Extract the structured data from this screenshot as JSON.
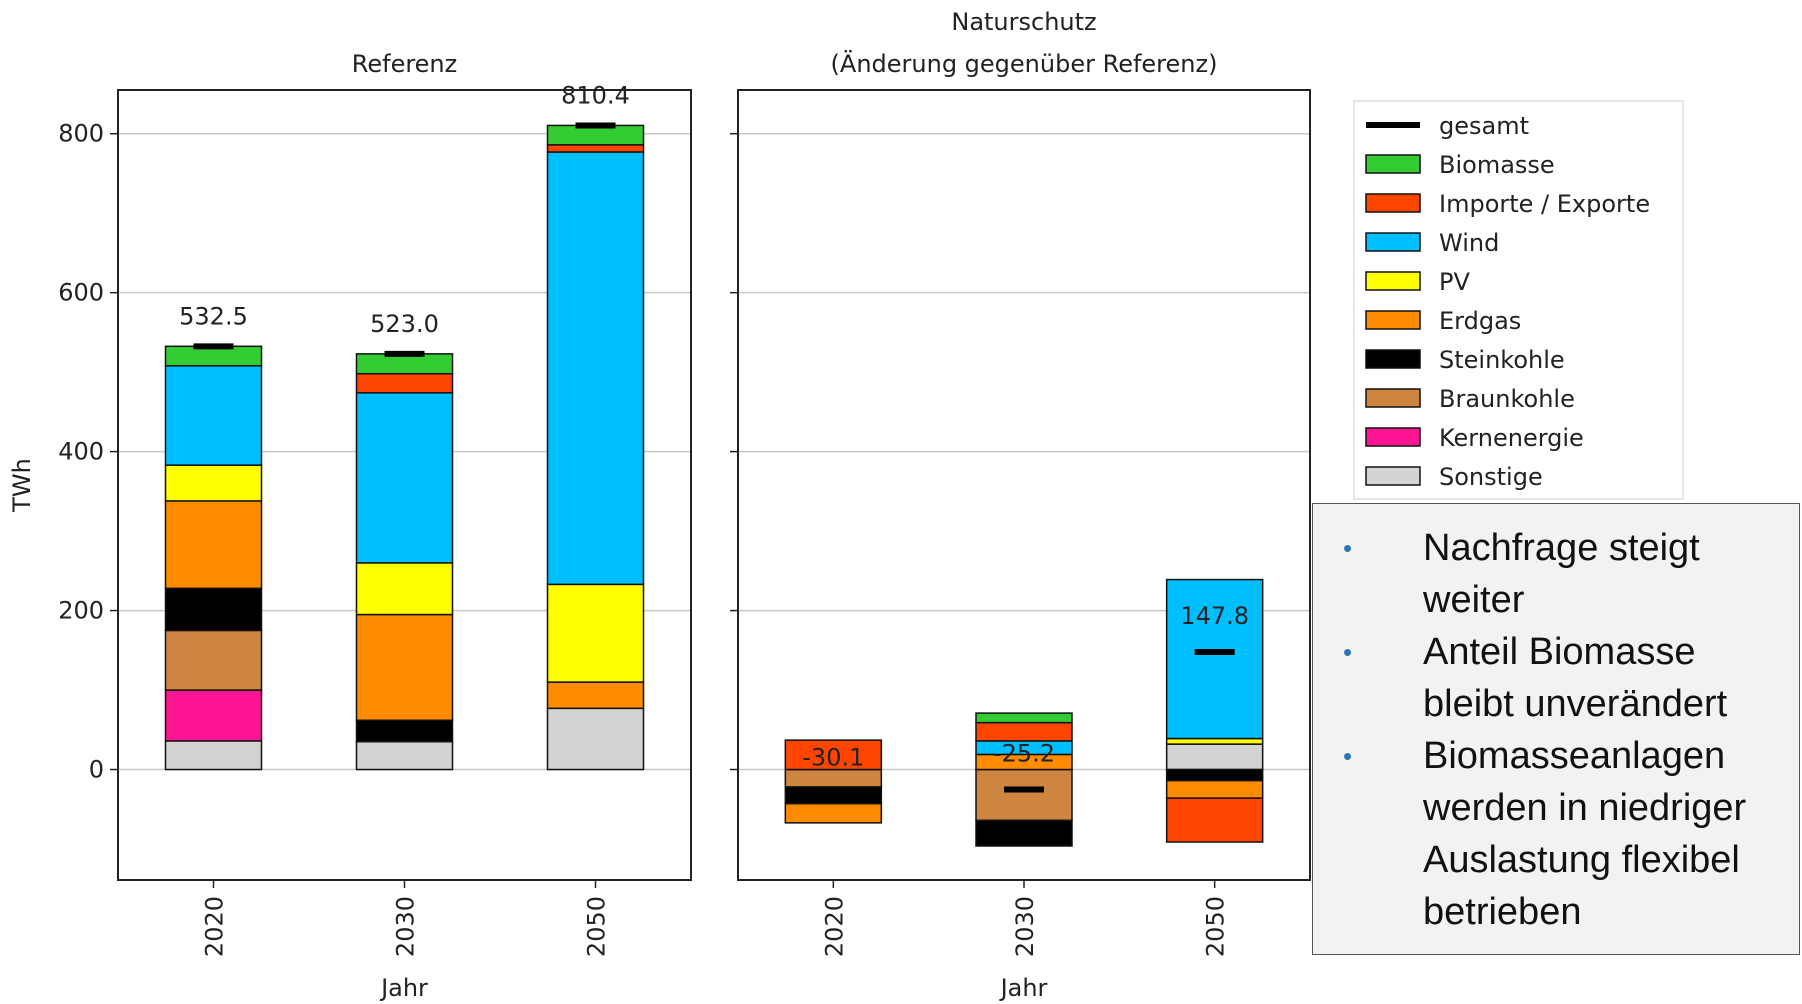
{
  "chart_data": [
    {
      "type": "stacked-bar",
      "title": "Referenz",
      "xlabel": "Jahr",
      "ylabel": "TWh",
      "categories": [
        "2020",
        "2030",
        "2050"
      ],
      "ylim": [
        -139,
        855
      ],
      "yticks": [
        0,
        200,
        400,
        600,
        800
      ],
      "grid": true,
      "legend": "outside right",
      "totals": {
        "name": "gesamt",
        "color": "#000000",
        "values": [
          532.5,
          523.0,
          810.4
        ],
        "value_labels": [
          "532.5",
          "523.0",
          "810.4"
        ]
      },
      "series": [
        {
          "name": "Biomasse",
          "color": "#33cc33",
          "values": [
            24.5,
            25,
            24.4
          ]
        },
        {
          "name": "Importe / Exporte",
          "color": "#ff4500",
          "values": [
            0,
            24,
            9
          ]
        },
        {
          "name": "Wind",
          "color": "#00bfff",
          "values": [
            125,
            214,
            544
          ]
        },
        {
          "name": "PV",
          "color": "#ffff00",
          "values": [
            45,
            65,
            123
          ]
        },
        {
          "name": "Erdgas",
          "color": "#ff8c00",
          "values": [
            110,
            133,
            33
          ]
        },
        {
          "name": "Steinkohle",
          "color": "#000000",
          "values": [
            53,
            27,
            0
          ]
        },
        {
          "name": "Braunkohle",
          "color": "#cd853f",
          "values": [
            75,
            0,
            0
          ]
        },
        {
          "name": "Kernenergie",
          "color": "#ff1493",
          "values": [
            64,
            0,
            0
          ]
        },
        {
          "name": "Sonstige",
          "color": "#d3d3d3",
          "values": [
            36,
            35,
            77
          ]
        }
      ]
    },
    {
      "type": "stacked-bar",
      "title": "Naturschutz",
      "subtitle": "(Änderung gegenüber Referenz)",
      "xlabel": "Jahr",
      "categories": [
        "2020",
        "2030",
        "2050"
      ],
      "ylim": [
        -139,
        855
      ],
      "yticks": [
        0,
        200,
        400,
        600,
        800
      ],
      "grid": true,
      "sharey": true,
      "totals": {
        "values": [
          -30.1,
          -25.2,
          147.8
        ]
      },
      "series": [
        {
          "values": [
            0,
            12,
            0
          ]
        },
        {
          "values": [
            37,
            23,
            -55.2
          ]
        },
        {
          "values": [
            0,
            17,
            200
          ]
        },
        {
          "values": [
            0,
            0,
            7
          ]
        },
        {
          "values": [
            -24.1,
            19,
            -22
          ]
        },
        {
          "values": [
            -21,
            -32.2,
            -14
          ]
        },
        {
          "values": [
            -22,
            -64,
            0
          ]
        },
        {
          "values": [
            0,
            0,
            0
          ]
        },
        {
          "values": [
            0,
            0,
            32
          ]
        }
      ]
    }
  ],
  "notes": [
    "Nachfrage steigt weiter",
    "Anteil Biomasse bleibt unverändert",
    "Biomasseanlagen werden in niedriger Auslastung flexibel betrieben"
  ]
}
